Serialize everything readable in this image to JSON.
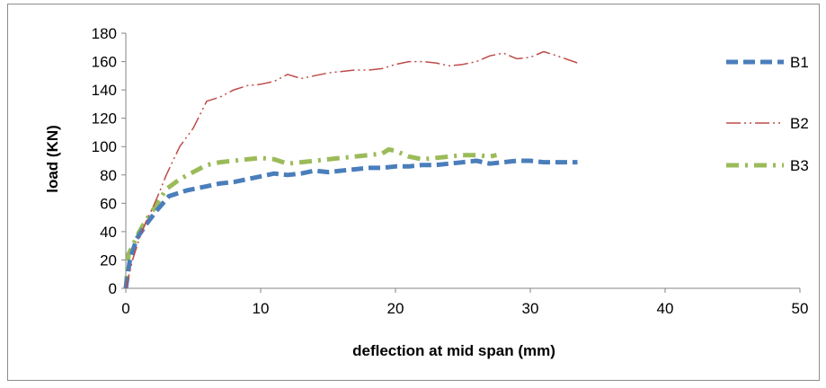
{
  "chart_data": {
    "type": "line",
    "title": "",
    "xlabel": "deflection  at mid span (mm)",
    "ylabel": "load (KN)",
    "xlim": [
      0,
      50
    ],
    "ylim": [
      0,
      180
    ],
    "xticks": [
      0,
      10,
      20,
      30,
      40,
      50
    ],
    "yticks": [
      0,
      20,
      40,
      60,
      80,
      100,
      120,
      140,
      160,
      180
    ],
    "grid": false,
    "legend_position": "right",
    "series": [
      {
        "name": "B1",
        "color": "#4a7ebb",
        "style": "dashed",
        "x": [
          0,
          0.3,
          0.8,
          1.5,
          2.3,
          3.2,
          4.5,
          6,
          7,
          8,
          9,
          10,
          11,
          12,
          13,
          14,
          15,
          16,
          17,
          18,
          19,
          20,
          21,
          22,
          23,
          24,
          25,
          26,
          27,
          28,
          29,
          30,
          31,
          32,
          33.5
        ],
        "y": [
          0,
          20,
          35,
          45,
          55,
          65,
          69,
          72,
          74,
          75,
          77,
          79,
          81,
          80,
          81,
          83,
          82,
          83,
          84,
          85,
          85,
          86,
          86,
          87,
          87,
          88,
          89,
          90,
          88,
          89,
          90,
          90,
          89,
          89,
          89
        ]
      },
      {
        "name": "B2",
        "color": "#be4b48",
        "style": "dash-dot-dot",
        "x": [
          0,
          0.5,
          1,
          1.5,
          2,
          2.5,
          3,
          3.5,
          4,
          5,
          6,
          7,
          8,
          9,
          10,
          11,
          12,
          13,
          14,
          15,
          16,
          17,
          18,
          19,
          20,
          21,
          22,
          23,
          24,
          25,
          26,
          27,
          28,
          29,
          30,
          31,
          32,
          33.5
        ],
        "y": [
          0,
          20,
          35,
          47,
          57,
          68,
          80,
          90,
          100,
          113,
          132,
          135,
          140,
          143,
          144,
          146,
          151,
          148,
          150,
          152,
          153,
          154,
          154,
          155,
          158,
          160,
          160,
          159,
          157,
          158,
          160,
          164,
          166,
          162,
          163,
          167,
          164,
          159
        ]
      },
      {
        "name": "B3",
        "color": "#9bbb59",
        "style": "dash-dot",
        "x": [
          0,
          0.2,
          0.5,
          1,
          1.5,
          2,
          3,
          4,
          5,
          6,
          7,
          8,
          9,
          10,
          11,
          12,
          13,
          14,
          15,
          16,
          17,
          18,
          19,
          19.5,
          20,
          21,
          22,
          23,
          24,
          25,
          26,
          27,
          27.5
        ],
        "y": [
          0,
          24,
          30,
          40,
          48,
          55,
          70,
          77,
          82,
          87,
          89,
          90,
          91,
          92,
          91,
          88,
          89,
          90,
          91,
          92,
          93,
          94,
          95,
          98,
          97,
          93,
          91,
          92,
          93,
          94,
          94,
          93,
          94
        ]
      }
    ]
  }
}
